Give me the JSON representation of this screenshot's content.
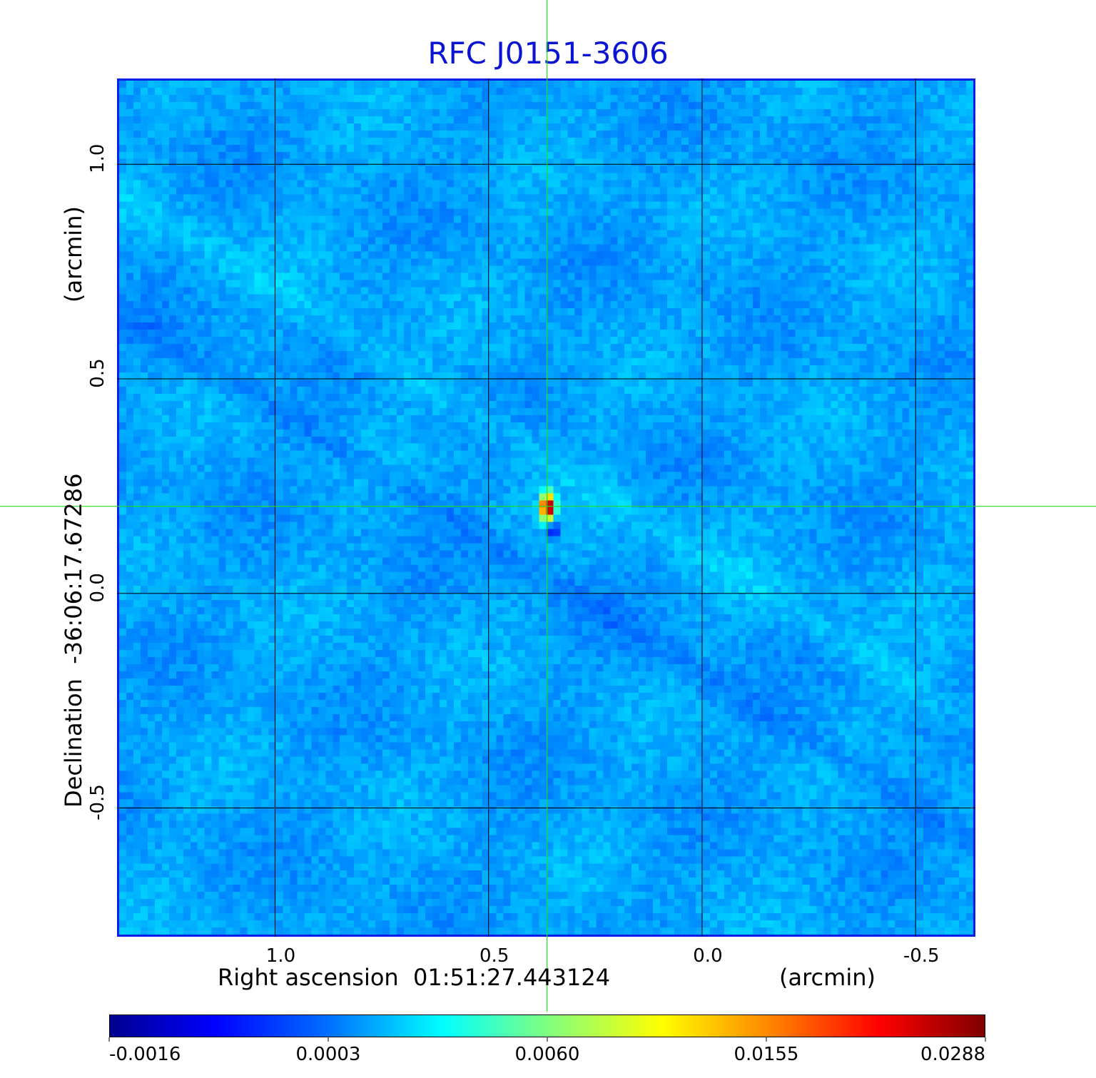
{
  "chart_data": {
    "type": "heatmap",
    "title": "RFC J0151-3606",
    "xlabel": "Right ascension  01:51:27.443124",
    "xunit": "(arcmin)",
    "ylabel": "Declination  -36:06:17.67286",
    "yunit": "(arcmin)",
    "x_ticks": [
      "1.0",
      "0.5",
      "0.0",
      "-0.5"
    ],
    "y_ticks": [
      "1.0",
      "0.5",
      "0.0",
      "-0.5"
    ],
    "xlim": [
      1.37,
      -0.64
    ],
    "ylim": [
      -0.8,
      1.2
    ],
    "grid": true,
    "crosshair": {
      "x": 0.363,
      "y": 0.203,
      "color": "#22dd22"
    },
    "source_peak": {
      "x": 0.37,
      "y": 0.21
    },
    "colormap": "jet",
    "colorbar_ticks": [
      "-0.0016",
      "0.0003",
      "0.0060",
      "0.0155",
      "0.0288"
    ],
    "colorbar_range": [
      -0.0016,
      0.0288
    ]
  }
}
